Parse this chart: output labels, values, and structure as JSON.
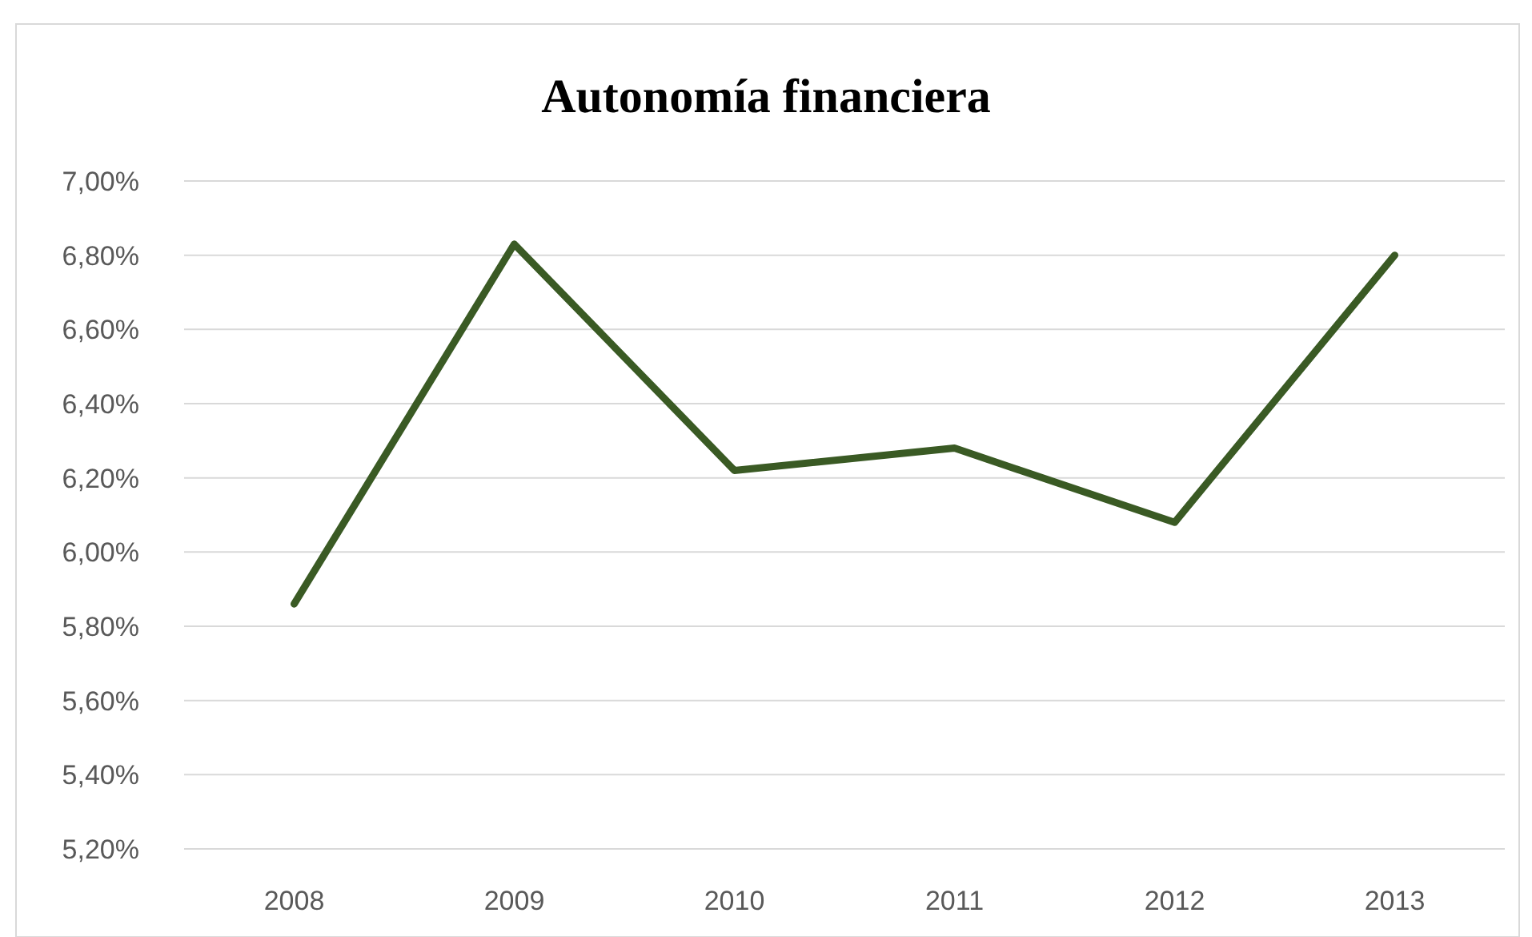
{
  "chart_data": {
    "type": "line",
    "title": "Autonomía financiera",
    "categories": [
      "2008",
      "2009",
      "2010",
      "2011",
      "2012",
      "2013"
    ],
    "series": [
      {
        "color": "#3a5a24",
        "values": [
          5.86,
          6.83,
          6.22,
          6.28,
          6.08,
          6.8
        ]
      }
    ],
    "ylim": [
      5.2,
      7.0
    ],
    "yticks": [
      {
        "value": 5.2,
        "label": "5,20%"
      },
      {
        "value": 5.4,
        "label": "5,40%"
      },
      {
        "value": 5.6,
        "label": "5,60%"
      },
      {
        "value": 5.8,
        "label": "5,80%"
      },
      {
        "value": 6.0,
        "label": "6,00%"
      },
      {
        "value": 6.2,
        "label": "6,20%"
      },
      {
        "value": 6.4,
        "label": "6,40%"
      },
      {
        "value": 6.6,
        "label": "6,60%"
      },
      {
        "value": 6.8,
        "label": "6,80%"
      },
      {
        "value": 7.0,
        "label": "7,00%"
      }
    ],
    "grid": "y",
    "marker": "none",
    "line_style": "solid"
  }
}
